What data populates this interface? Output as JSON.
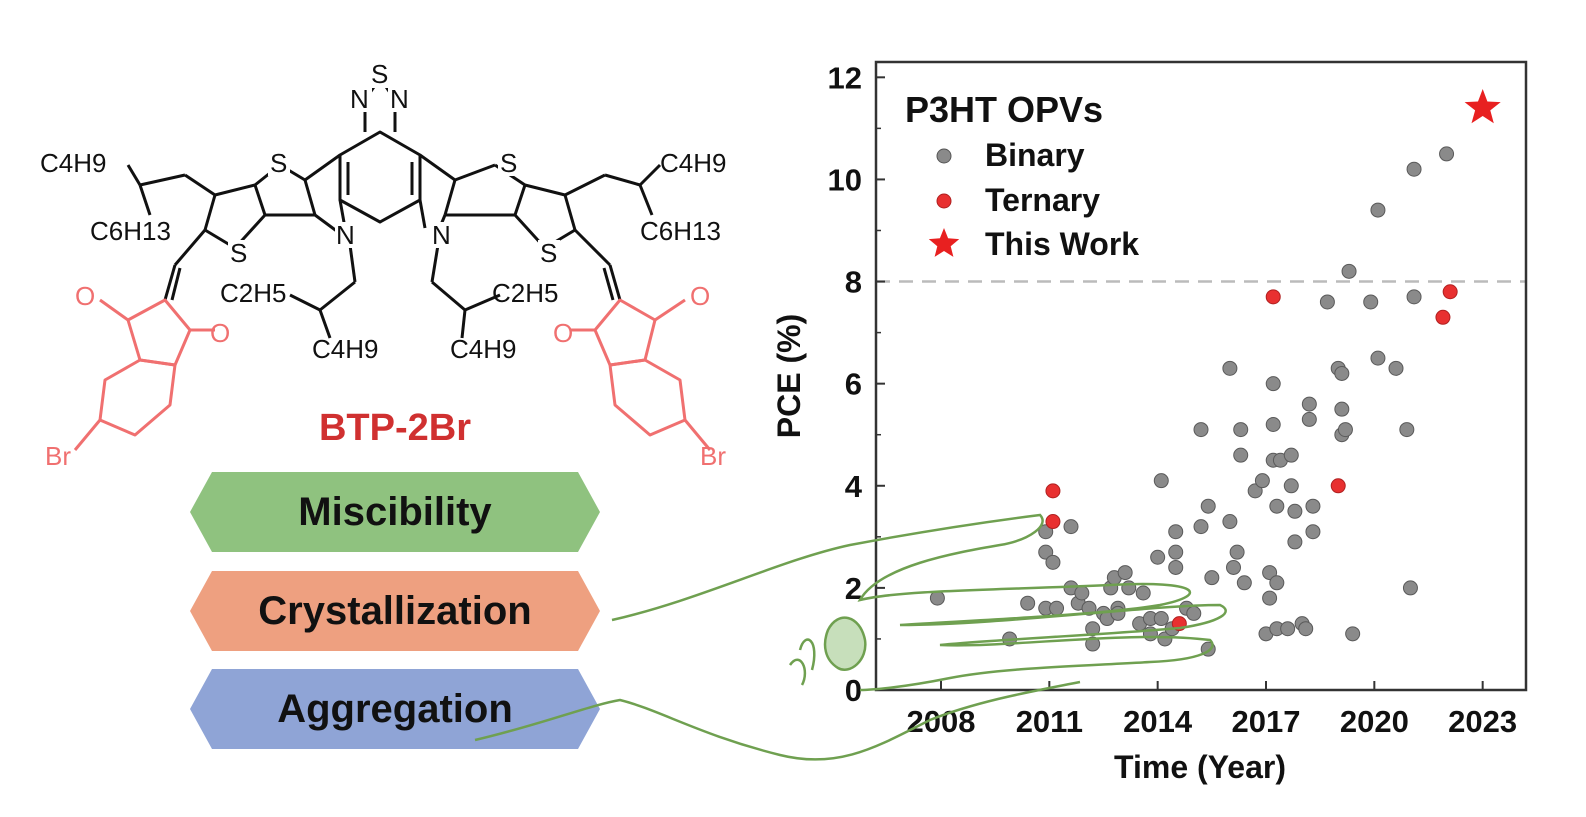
{
  "molecule": {
    "name": "BTP-2Br",
    "name_color": "#d03030",
    "atoms": {
      "S": "S",
      "N": "N",
      "O": "O",
      "Br": "Br",
      "C4H9": "C4H9",
      "C6H13": "C6H13",
      "C2H5": "C2H5"
    }
  },
  "properties": [
    {
      "label": "Miscibility",
      "color": "#8fc27f"
    },
    {
      "label": "Crystallization",
      "color": "#eea080"
    },
    {
      "label": "Aggregation",
      "color": "#8fa4d6"
    }
  ],
  "chart_data": {
    "type": "scatter",
    "xlabel": "Time (Year)",
    "ylabel": "PCE (%)",
    "xlim": [
      2006.2,
      2024.2
    ],
    "ylim": [
      0,
      12.3
    ],
    "xticks": [
      2008,
      2011,
      2014,
      2017,
      2020,
      2023
    ],
    "yticks": [
      0,
      2,
      4,
      6,
      8,
      10,
      12
    ],
    "reference_line": {
      "y": 8,
      "style": "dashed"
    },
    "legend": {
      "title": "P3HT OPVs",
      "position": "top-left"
    },
    "colors": {
      "Binary": "#8a8a8a",
      "Ternary": "#e83030",
      "This Work": "#e82020"
    },
    "series": [
      {
        "name": "Binary",
        "marker": "circle",
        "points": [
          [
            2007.9,
            1.8
          ],
          [
            2009.9,
            1.0
          ],
          [
            2010.4,
            1.7
          ],
          [
            2010.9,
            1.6
          ],
          [
            2010.9,
            3.1
          ],
          [
            2010.9,
            2.7
          ],
          [
            2011.1,
            2.5
          ],
          [
            2011.2,
            1.6
          ],
          [
            2011.6,
            3.2
          ],
          [
            2011.6,
            2.0
          ],
          [
            2011.8,
            1.7
          ],
          [
            2011.9,
            1.9
          ],
          [
            2012.1,
            1.6
          ],
          [
            2012.2,
            1.2
          ],
          [
            2012.2,
            0.9
          ],
          [
            2012.5,
            1.5
          ],
          [
            2012.6,
            1.4
          ],
          [
            2012.7,
            2.0
          ],
          [
            2012.8,
            2.2
          ],
          [
            2012.9,
            1.6
          ],
          [
            2012.9,
            1.5
          ],
          [
            2013.1,
            2.3
          ],
          [
            2013.2,
            2.0
          ],
          [
            2013.5,
            1.3
          ],
          [
            2013.6,
            1.9
          ],
          [
            2013.8,
            1.4
          ],
          [
            2013.8,
            1.1
          ],
          [
            2014.0,
            2.6
          ],
          [
            2014.1,
            4.1
          ],
          [
            2014.1,
            1.4
          ],
          [
            2014.2,
            1.0
          ],
          [
            2014.4,
            1.2
          ],
          [
            2014.5,
            2.7
          ],
          [
            2014.5,
            3.1
          ],
          [
            2014.5,
            2.4
          ],
          [
            2014.8,
            1.6
          ],
          [
            2015.0,
            1.5
          ],
          [
            2015.2,
            3.2
          ],
          [
            2015.2,
            5.1
          ],
          [
            2015.4,
            3.6
          ],
          [
            2015.5,
            2.2
          ],
          [
            2015.4,
            0.8
          ],
          [
            2016.0,
            6.3
          ],
          [
            2016.0,
            3.3
          ],
          [
            2016.1,
            2.4
          ],
          [
            2016.2,
            2.7
          ],
          [
            2016.3,
            4.6
          ],
          [
            2016.3,
            5.1
          ],
          [
            2016.4,
            2.1
          ],
          [
            2016.7,
            3.9
          ],
          [
            2016.9,
            4.1
          ],
          [
            2017.0,
            1.1
          ],
          [
            2017.1,
            2.3
          ],
          [
            2017.1,
            1.8
          ],
          [
            2017.2,
            6.0
          ],
          [
            2017.2,
            5.2
          ],
          [
            2017.2,
            4.5
          ],
          [
            2017.3,
            3.6
          ],
          [
            2017.3,
            2.1
          ],
          [
            2017.3,
            1.2
          ],
          [
            2017.4,
            4.5
          ],
          [
            2017.6,
            1.2
          ],
          [
            2017.7,
            4.6
          ],
          [
            2017.7,
            4.0
          ],
          [
            2017.8,
            2.9
          ],
          [
            2017.8,
            3.5
          ],
          [
            2018.0,
            1.3
          ],
          [
            2018.1,
            1.2
          ],
          [
            2018.2,
            5.6
          ],
          [
            2018.2,
            5.3
          ],
          [
            2018.3,
            3.6
          ],
          [
            2018.3,
            3.1
          ],
          [
            2018.7,
            7.6
          ],
          [
            2019.0,
            6.3
          ],
          [
            2019.1,
            6.2
          ],
          [
            2019.1,
            5.5
          ],
          [
            2019.1,
            5.0
          ],
          [
            2019.2,
            5.1
          ],
          [
            2019.3,
            8.2
          ],
          [
            2019.4,
            1.1
          ],
          [
            2019.9,
            7.6
          ],
          [
            2020.1,
            9.4
          ],
          [
            2020.1,
            6.5
          ],
          [
            2020.6,
            6.3
          ],
          [
            2020.9,
            5.1
          ],
          [
            2021.0,
            2.0
          ],
          [
            2021.1,
            7.7
          ],
          [
            2021.1,
            10.2
          ],
          [
            2022.0,
            10.5
          ]
        ]
      },
      {
        "name": "Ternary",
        "marker": "circle",
        "points": [
          [
            2011.1,
            3.9
          ],
          [
            2011.1,
            3.3
          ],
          [
            2014.6,
            1.3
          ],
          [
            2017.2,
            7.7
          ],
          [
            2019.0,
            4.0
          ],
          [
            2021.9,
            7.3
          ],
          [
            2022.1,
            7.8
          ]
        ]
      },
      {
        "name": "This Work",
        "marker": "star",
        "points": [
          [
            2023.0,
            11.4
          ]
        ]
      }
    ]
  }
}
